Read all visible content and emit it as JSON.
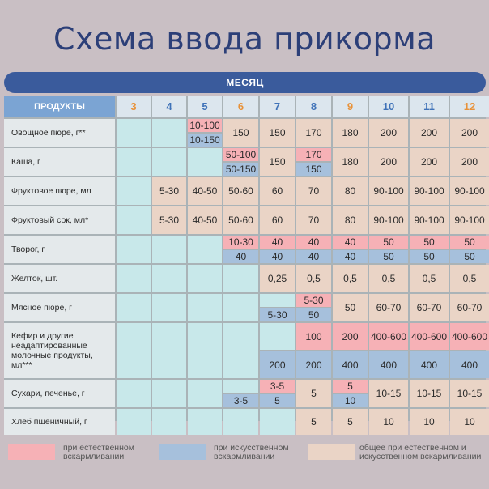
{
  "title": "Схема ввода прикорма",
  "month_label": "МЕСЯЦ",
  "header": {
    "products_label": "ПРОДУКТЫ",
    "months": [
      "3",
      "4",
      "5",
      "6",
      "7",
      "8",
      "9",
      "10",
      "11",
      "12"
    ],
    "month_colors": [
      "#e8923a",
      "#3f72b8",
      "#3f72b8",
      "#e8923a",
      "#3f72b8",
      "#3f72b8",
      "#e8923a",
      "#3f72b8",
      "#3f72b8",
      "#e8923a"
    ]
  },
  "colors": {
    "teal": "#c8e8ea",
    "pink": "#f6b1b6",
    "blue": "#a6c0dc",
    "beige": "#ead4c6",
    "label_bg": "#e4e9eb",
    "header_label_bg": "#7ba4d3",
    "header_month_bg": "#dce6ee"
  },
  "rows": [
    {
      "label": "Овощное пюре, г**",
      "cells": [
        {
          "type": "teal"
        },
        {
          "type": "teal"
        },
        {
          "type": "split",
          "top": {
            "text": "10-100",
            "color": "pink"
          },
          "bottom": {
            "text": "10-150",
            "color": "blue"
          }
        },
        {
          "text": "150",
          "color": "beige"
        },
        {
          "text": "150",
          "color": "beige"
        },
        {
          "text": "170",
          "color": "beige"
        },
        {
          "text": "180",
          "color": "beige"
        },
        {
          "text": "200",
          "color": "beige"
        },
        {
          "text": "200",
          "color": "beige"
        },
        {
          "text": "200",
          "color": "beige"
        }
      ]
    },
    {
      "label": "Каша, г",
      "cells": [
        {
          "type": "teal"
        },
        {
          "type": "teal"
        },
        {
          "type": "teal"
        },
        {
          "type": "split",
          "top": {
            "text": "50-100",
            "color": "pink"
          },
          "bottom": {
            "text": "50-150",
            "color": "blue"
          }
        },
        {
          "text": "150",
          "color": "beige"
        },
        {
          "type": "split",
          "top": {
            "text": "170",
            "color": "pink"
          },
          "bottom": {
            "text": "150",
            "color": "blue"
          }
        },
        {
          "text": "180",
          "color": "beige"
        },
        {
          "text": "200",
          "color": "beige"
        },
        {
          "text": "200",
          "color": "beige"
        },
        {
          "text": "200",
          "color": "beige"
        }
      ]
    },
    {
      "label": "Фруктовое пюре, мл",
      "cells": [
        {
          "type": "teal"
        },
        {
          "text": "5-30",
          "color": "beige"
        },
        {
          "text": "40-50",
          "color": "beige"
        },
        {
          "text": "50-60",
          "color": "beige"
        },
        {
          "text": "60",
          "color": "beige"
        },
        {
          "text": "70",
          "color": "beige"
        },
        {
          "text": "80",
          "color": "beige"
        },
        {
          "text": "90-100",
          "color": "beige"
        },
        {
          "text": "90-100",
          "color": "beige"
        },
        {
          "text": "90-100",
          "color": "beige"
        }
      ]
    },
    {
      "label": "Фруктовый сок, мл*",
      "cells": [
        {
          "type": "teal"
        },
        {
          "text": "5-30",
          "color": "beige"
        },
        {
          "text": "40-50",
          "color": "beige"
        },
        {
          "text": "50-60",
          "color": "beige"
        },
        {
          "text": "60",
          "color": "beige"
        },
        {
          "text": "70",
          "color": "beige"
        },
        {
          "text": "80",
          "color": "beige"
        },
        {
          "text": "90-100",
          "color": "beige"
        },
        {
          "text": "90-100",
          "color": "beige"
        },
        {
          "text": "90-100",
          "color": "beige"
        }
      ]
    },
    {
      "label": "Творог, г",
      "cells": [
        {
          "type": "teal"
        },
        {
          "type": "teal"
        },
        {
          "type": "teal"
        },
        {
          "type": "split",
          "top": {
            "text": "10-30",
            "color": "pink"
          },
          "bottom": {
            "text": "40",
            "color": "blue"
          }
        },
        {
          "type": "split",
          "top": {
            "text": "40",
            "color": "pink"
          },
          "bottom": {
            "text": "40",
            "color": "blue"
          }
        },
        {
          "type": "split",
          "top": {
            "text": "40",
            "color": "pink"
          },
          "bottom": {
            "text": "40",
            "color": "blue"
          }
        },
        {
          "type": "split",
          "top": {
            "text": "40",
            "color": "pink"
          },
          "bottom": {
            "text": "40",
            "color": "blue"
          }
        },
        {
          "type": "split",
          "top": {
            "text": "50",
            "color": "pink"
          },
          "bottom": {
            "text": "50",
            "color": "blue"
          }
        },
        {
          "type": "split",
          "top": {
            "text": "50",
            "color": "pink"
          },
          "bottom": {
            "text": "50",
            "color": "blue"
          }
        },
        {
          "type": "split",
          "top": {
            "text": "50",
            "color": "pink"
          },
          "bottom": {
            "text": "50",
            "color": "blue"
          }
        }
      ]
    },
    {
      "label": "Желток, шт.",
      "cells": [
        {
          "type": "teal"
        },
        {
          "type": "teal"
        },
        {
          "type": "teal"
        },
        {
          "type": "teal"
        },
        {
          "text": "0,25",
          "color": "beige"
        },
        {
          "text": "0,5",
          "color": "beige"
        },
        {
          "text": "0,5",
          "color": "beige"
        },
        {
          "text": "0,5",
          "color": "beige"
        },
        {
          "text": "0,5",
          "color": "beige"
        },
        {
          "text": "0,5",
          "color": "beige"
        }
      ]
    },
    {
      "label": "Мясное пюре, г",
      "cells": [
        {
          "type": "teal"
        },
        {
          "type": "teal"
        },
        {
          "type": "teal"
        },
        {
          "type": "teal"
        },
        {
          "type": "split",
          "top": {
            "text": "",
            "color": "teal"
          },
          "bottom": {
            "text": "5-30",
            "color": "blue"
          }
        },
        {
          "type": "split",
          "top": {
            "text": "5-30",
            "color": "pink"
          },
          "bottom": {
            "text": "50",
            "color": "blue"
          }
        },
        {
          "text": "50",
          "color": "beige"
        },
        {
          "text": "60-70",
          "color": "beige"
        },
        {
          "text": "60-70",
          "color": "beige"
        },
        {
          "text": "60-70",
          "color": "beige"
        }
      ]
    },
    {
      "label": "Кефир и другие неадаптированные молочные продукты, мл***",
      "tall": true,
      "cells": [
        {
          "type": "teal"
        },
        {
          "type": "teal"
        },
        {
          "type": "teal"
        },
        {
          "type": "teal"
        },
        {
          "type": "split",
          "top": {
            "text": "",
            "color": "teal"
          },
          "bottom": {
            "text": "200",
            "color": "blue"
          }
        },
        {
          "type": "split",
          "top": {
            "text": "100",
            "color": "pink"
          },
          "bottom": {
            "text": "200",
            "color": "blue"
          }
        },
        {
          "type": "split",
          "top": {
            "text": "200",
            "color": "pink"
          },
          "bottom": {
            "text": "400",
            "color": "blue"
          }
        },
        {
          "type": "split",
          "top": {
            "text": "400-600",
            "color": "pink"
          },
          "bottom": {
            "text": "400",
            "color": "blue"
          }
        },
        {
          "type": "split",
          "top": {
            "text": "400-600",
            "color": "pink"
          },
          "bottom": {
            "text": "400",
            "color": "blue"
          }
        },
        {
          "type": "split",
          "top": {
            "text": "400-600",
            "color": "pink"
          },
          "bottom": {
            "text": "400",
            "color": "blue"
          }
        }
      ]
    },
    {
      "label": "Сухари, печенье, г",
      "cells": [
        {
          "type": "teal"
        },
        {
          "type": "teal"
        },
        {
          "type": "teal"
        },
        {
          "type": "split",
          "top": {
            "text": "",
            "color": "teal"
          },
          "bottom": {
            "text": "3-5",
            "color": "blue"
          }
        },
        {
          "type": "split",
          "top": {
            "text": "3-5",
            "color": "pink"
          },
          "bottom": {
            "text": "5",
            "color": "blue"
          }
        },
        {
          "text": "5",
          "color": "beige"
        },
        {
          "type": "split",
          "top": {
            "text": "5",
            "color": "pink"
          },
          "bottom": {
            "text": "10",
            "color": "blue"
          }
        },
        {
          "text": "10-15",
          "color": "beige"
        },
        {
          "text": "10-15",
          "color": "beige"
        },
        {
          "text": "10-15",
          "color": "beige"
        }
      ]
    },
    {
      "label": "Хлеб пшеничный, г",
      "cells": [
        {
          "type": "teal"
        },
        {
          "type": "teal"
        },
        {
          "type": "teal"
        },
        {
          "type": "teal"
        },
        {
          "type": "teal"
        },
        {
          "text": "5",
          "color": "beige"
        },
        {
          "text": "5",
          "color": "beige"
        },
        {
          "text": "10",
          "color": "beige"
        },
        {
          "text": "10",
          "color": "beige"
        },
        {
          "text": "10",
          "color": "beige"
        }
      ]
    }
  ],
  "legend": [
    {
      "text": "при естественном вскармливании",
      "color": "pink"
    },
    {
      "text": "при искусственном вскармливании",
      "color": "blue"
    },
    {
      "text": "общее при естественном и искусственном вскармливании",
      "color": "beige"
    }
  ]
}
